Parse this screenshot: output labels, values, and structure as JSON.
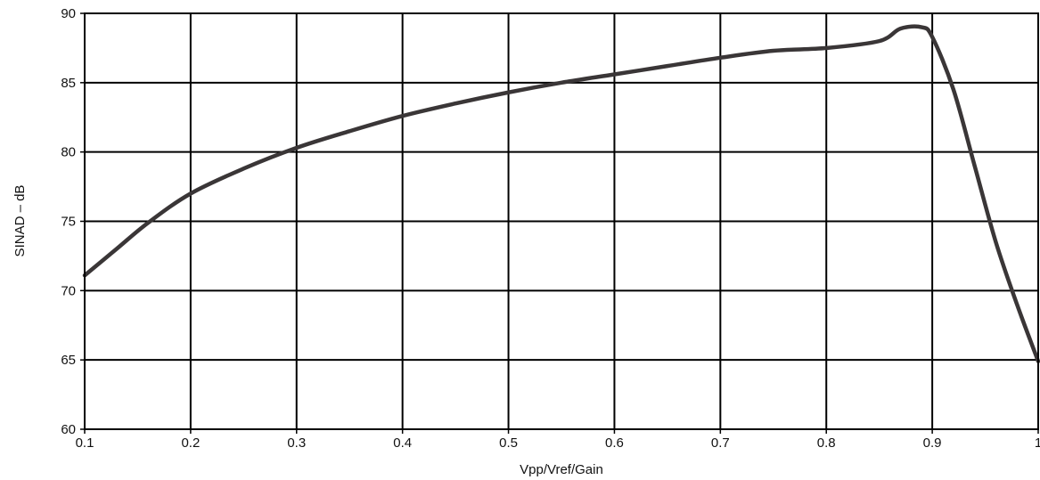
{
  "chart_data": {
    "type": "line",
    "title": "",
    "xlabel": "Vpp/Vref/Gain",
    "ylabel": "SINAD – dB",
    "xlim": [
      0.1,
      1
    ],
    "ylim": [
      60,
      90
    ],
    "grid": true,
    "legend": "none",
    "x_ticks": [
      "0.1",
      "0.2",
      "0.3",
      "0.4",
      "0.5",
      "0.6",
      "0.7",
      "0.8",
      "0.9",
      "1"
    ],
    "y_ticks": [
      "60",
      "65",
      "70",
      "75",
      "80",
      "85",
      "90"
    ],
    "colors": {
      "line": "#3a3637",
      "grid": "#000000",
      "axis": "#000000"
    },
    "series": [
      {
        "x": [
          0.1,
          0.13,
          0.16,
          0.2,
          0.25,
          0.3,
          0.35,
          0.4,
          0.45,
          0.5,
          0.55,
          0.6,
          0.65,
          0.7,
          0.75,
          0.8,
          0.85,
          0.87,
          0.89,
          0.9,
          0.92,
          0.94,
          0.96,
          0.98,
          1.0
        ],
        "y": [
          71.1,
          73.0,
          74.9,
          77.0,
          78.8,
          80.3,
          81.5,
          82.6,
          83.5,
          84.3,
          85.0,
          85.6,
          86.2,
          86.8,
          87.3,
          87.5,
          88.0,
          88.9,
          89.0,
          88.3,
          84.5,
          79.0,
          73.5,
          69.0,
          64.9
        ]
      }
    ]
  }
}
